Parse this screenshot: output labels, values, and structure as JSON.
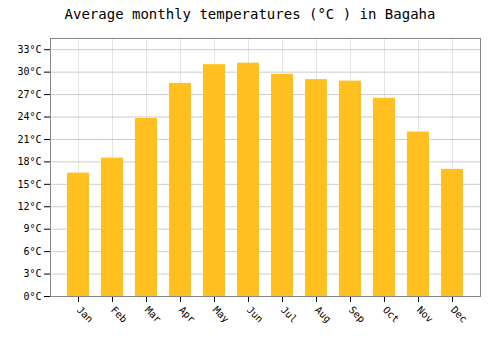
{
  "chart_data": {
    "type": "bar",
    "title": "Average monthly temperatures (°C ) in Bagaha",
    "categories": [
      "Jan",
      "Feb",
      "Mar",
      "Apr",
      "May",
      "Jun",
      "Jul",
      "Aug",
      "Sep",
      "Oct",
      "Nov",
      "Dec"
    ],
    "values": [
      16.5,
      18.5,
      23.8,
      28.5,
      31.0,
      31.2,
      29.7,
      29.0,
      28.8,
      26.5,
      22.0,
      17.0
    ],
    "color": "#FFC020",
    "ylim": [
      0,
      34.5
    ],
    "yticks": [
      {
        "value": 0,
        "label": "0°C"
      },
      {
        "value": 3,
        "label": "3°C"
      },
      {
        "value": 6,
        "label": "6°C"
      },
      {
        "value": 9,
        "label": "9°C"
      },
      {
        "value": 12,
        "label": "12°C"
      },
      {
        "value": 15,
        "label": "15°C"
      },
      {
        "value": 18,
        "label": "18°C"
      },
      {
        "value": 21,
        "label": "21°C"
      },
      {
        "value": 24,
        "label": "24°C"
      },
      {
        "value": 27,
        "label": "27°C"
      },
      {
        "value": 30,
        "label": "30°C"
      },
      {
        "value": 33,
        "label": "33°C"
      }
    ],
    "grid": true
  }
}
